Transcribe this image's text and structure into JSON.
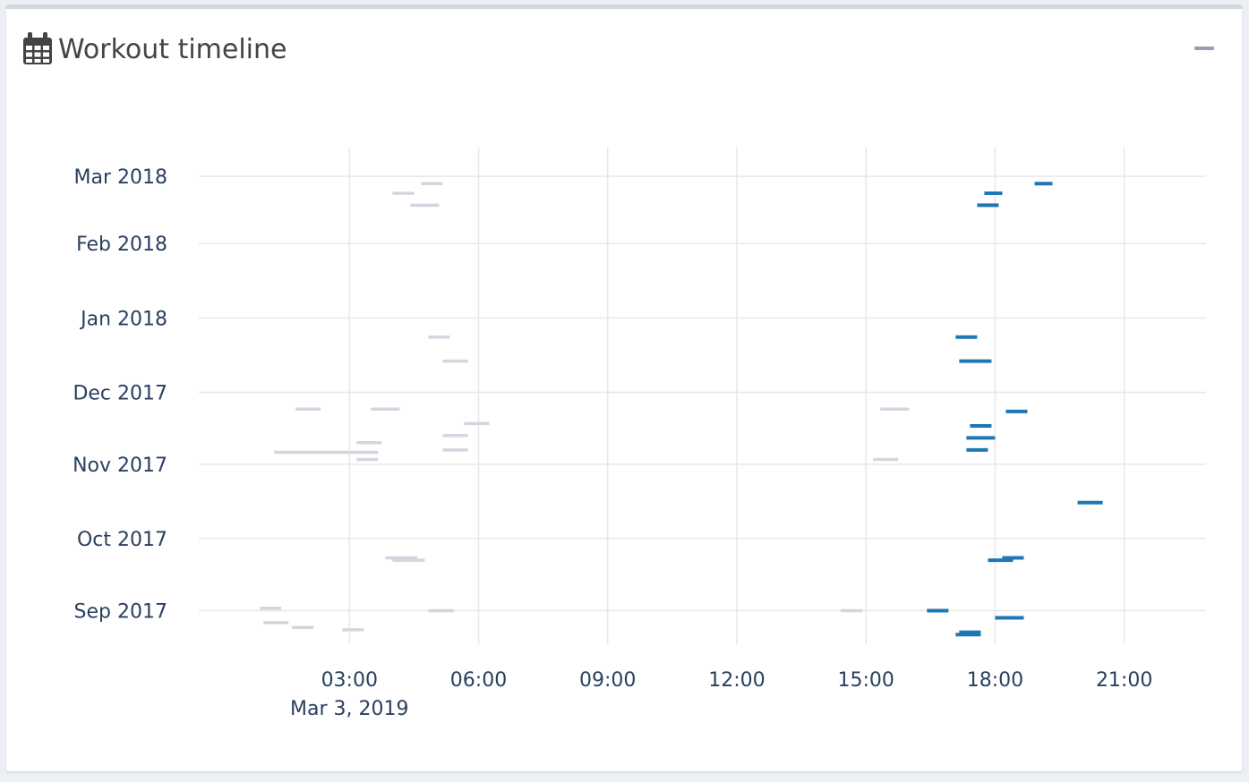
{
  "box": {
    "title": "Workout timeline",
    "title_icon": "calendar-icon",
    "collapse_icon": "minus-icon"
  },
  "colors": {
    "highlight": "#1f77b4",
    "muted": "#d2d6de",
    "grid": "#e8e8e8",
    "text": "#2a3f5f"
  },
  "chart_data": {
    "type": "timeline",
    "title": "",
    "xlabel": "",
    "ylabel": "",
    "x_axis": {
      "ticks": [
        "03:00",
        "06:00",
        "09:00",
        "12:00",
        "15:00",
        "18:00",
        "21:00"
      ],
      "date_label": "Mar 3, 2019",
      "range_hours": [
        -0.5,
        22.9
      ]
    },
    "y_axis": {
      "ticks": [
        "Mar 2018",
        "Feb 2018",
        "Jan 2018",
        "Dec 2017",
        "Nov 2017",
        "Oct 2017",
        "Sep 2017"
      ],
      "range_days": [
        -9,
        198
      ]
    },
    "grid": true,
    "series": [
      {
        "color_role": "highlight",
        "sessions": [
          {
            "date": "2018-02-26",
            "start": "18:55",
            "end": "19:20"
          },
          {
            "date": "2018-02-22",
            "start": "17:45",
            "end": "18:10"
          },
          {
            "date": "2018-02-17",
            "start": "17:35",
            "end": "18:05"
          },
          {
            "date": "2017-12-24",
            "start": "17:05",
            "end": "17:35"
          },
          {
            "date": "2017-12-14",
            "start": "17:10",
            "end": "17:55"
          },
          {
            "date": "2017-11-23",
            "start": "18:15",
            "end": "18:45"
          },
          {
            "date": "2017-11-17",
            "start": "17:25",
            "end": "17:55"
          },
          {
            "date": "2017-11-12",
            "start": "17:20",
            "end": "18:00"
          },
          {
            "date": "2017-11-07",
            "start": "17:20",
            "end": "17:50"
          },
          {
            "date": "2017-10-16",
            "start": "19:55",
            "end": "20:30"
          },
          {
            "date": "2017-09-23",
            "start": "18:10",
            "end": "18:40"
          },
          {
            "date": "2017-09-22",
            "start": "17:50",
            "end": "18:25"
          },
          {
            "date": "2017-09-01",
            "start": "16:25",
            "end": "16:55"
          },
          {
            "date": "2017-08-29",
            "start": "18:00",
            "end": "18:40"
          },
          {
            "date": "2017-08-23",
            "start": "17:10",
            "end": "17:40"
          },
          {
            "date": "2017-08-22",
            "start": "17:05",
            "end": "17:40"
          }
        ]
      },
      {
        "color_role": "muted",
        "sessions": [
          {
            "date": "2018-02-26",
            "start": "04:40",
            "end": "05:10"
          },
          {
            "date": "2018-02-22",
            "start": "04:00",
            "end": "04:30"
          },
          {
            "date": "2018-02-17",
            "start": "04:25",
            "end": "05:05"
          },
          {
            "date": "2017-12-24",
            "start": "04:50",
            "end": "05:20"
          },
          {
            "date": "2017-12-14",
            "start": "05:10",
            "end": "05:45"
          },
          {
            "date": "2017-11-24",
            "start": "01:45",
            "end": "02:20"
          },
          {
            "date": "2017-11-24",
            "start": "03:30",
            "end": "04:10"
          },
          {
            "date": "2017-11-24",
            "start": "15:20",
            "end": "16:00"
          },
          {
            "date": "2017-11-18",
            "start": "05:40",
            "end": "06:15"
          },
          {
            "date": "2017-11-13",
            "start": "05:10",
            "end": "05:45"
          },
          {
            "date": "2017-11-10",
            "start": "03:10",
            "end": "03:45"
          },
          {
            "date": "2017-11-07",
            "start": "05:10",
            "end": "05:45"
          },
          {
            "date": "2017-11-06",
            "start": "01:15",
            "end": "03:40"
          },
          {
            "date": "2017-11-03",
            "start": "03:10",
            "end": "03:40"
          },
          {
            "date": "2017-11-03",
            "start": "15:10",
            "end": "15:45"
          },
          {
            "date": "2017-09-23",
            "start": "03:50",
            "end": "04:35"
          },
          {
            "date": "2017-09-22",
            "start": "04:00",
            "end": "04:45"
          },
          {
            "date": "2017-09-02",
            "start": "00:55",
            "end": "01:25"
          },
          {
            "date": "2017-09-01",
            "start": "04:50",
            "end": "05:25"
          },
          {
            "date": "2017-09-01",
            "start": "14:25",
            "end": "14:55"
          },
          {
            "date": "2017-08-27",
            "start": "01:00",
            "end": "01:35"
          },
          {
            "date": "2017-08-25",
            "start": "01:40",
            "end": "02:10"
          },
          {
            "date": "2017-08-24",
            "start": "02:50",
            "end": "03:20"
          }
        ]
      }
    ]
  }
}
